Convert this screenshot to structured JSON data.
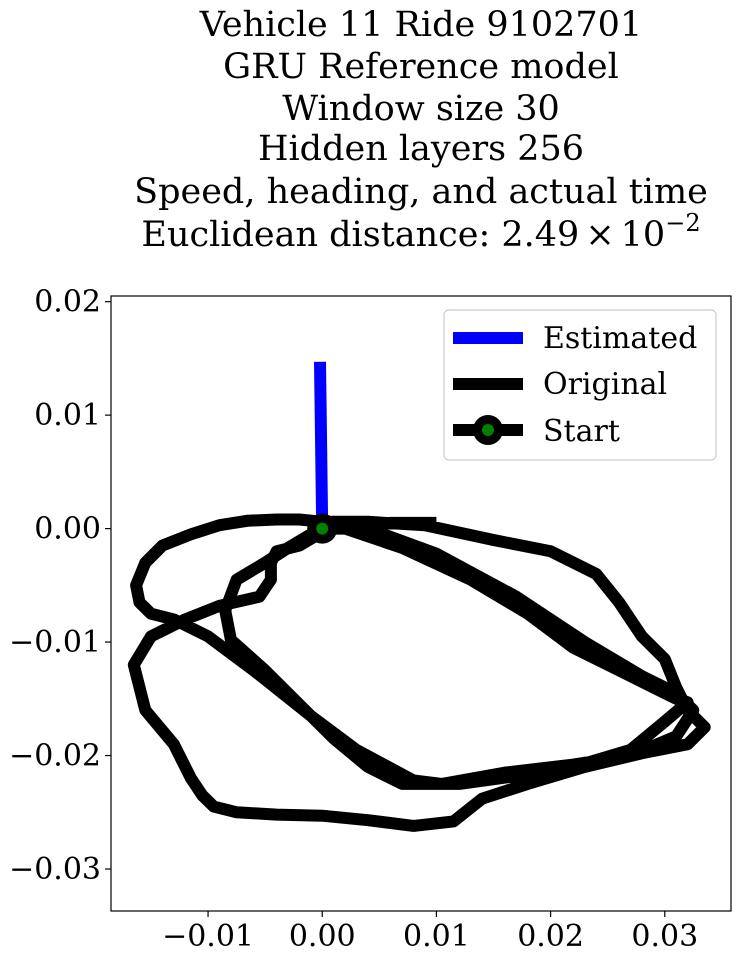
{
  "chart_data": {
    "type": "line",
    "title_lines": [
      "Vehicle 11 Ride 9102701",
      "GRU Reference model",
      "Window size 30",
      "Hidden layers 256",
      "Speed, heading, and actual time"
    ],
    "title_distance": {
      "prefix": "Euclidean distance: ",
      "mantissa": "2.49",
      "times": "×",
      "base": "10",
      "exponent": "−2"
    },
    "xlim": [
      -0.0185,
      0.0358
    ],
    "ylim": [
      -0.0337,
      0.0205
    ],
    "x_ticks": [
      {
        "value": -0.01,
        "label": "−0.01"
      },
      {
        "value": 0.0,
        "label": "0.00"
      },
      {
        "value": 0.01,
        "label": "0.01"
      },
      {
        "value": 0.02,
        "label": "0.02"
      },
      {
        "value": 0.03,
        "label": "0.03"
      }
    ],
    "y_ticks": [
      {
        "value": 0.02,
        "label": "0.02"
      },
      {
        "value": 0.01,
        "label": "0.01"
      },
      {
        "value": 0.0,
        "label": "0.00"
      },
      {
        "value": -0.01,
        "label": "−0.01"
      },
      {
        "value": -0.02,
        "label": "−0.02"
      },
      {
        "value": -0.03,
        "label": "−0.03"
      }
    ],
    "grid": false,
    "legend_position": "top-right",
    "legend": [
      "Estimated",
      "Original",
      "Start"
    ],
    "series": [
      {
        "name": "Estimated",
        "color": "#0000ff",
        "x": [
          0.0,
          -0.0001,
          -0.0002
        ],
        "y": [
          0.0,
          0.0075,
          0.0147
        ]
      },
      {
        "name": "Original",
        "color": "#000000",
        "x": [
          0.0,
          0.002,
          0.007,
          0.013,
          0.018,
          0.022,
          0.026,
          0.029,
          0.031,
          0.032,
          0.03,
          0.027,
          0.022,
          0.017,
          0.012,
          0.007,
          0.004,
          0.001,
          -0.002,
          -0.005,
          -0.008,
          -0.0085,
          -0.0075,
          -0.005,
          -0.003,
          -0.001,
          0.0,
          0.004,
          0.01,
          0.017,
          0.023,
          0.028,
          0.031,
          0.0325,
          0.031,
          0.027,
          0.022,
          0.016,
          0.0105,
          0.008,
          0.003,
          -0.001,
          -0.006,
          -0.01,
          -0.013,
          -0.015,
          -0.016,
          -0.0163,
          -0.0155,
          -0.014,
          -0.0115,
          -0.009,
          -0.0065,
          -0.004,
          -0.002,
          0.0,
          0.004,
          0.009,
          0.015,
          0.02,
          0.024,
          0.026,
          0.028,
          0.03,
          0.031,
          0.032,
          0.0335,
          0.032,
          0.028,
          0.023,
          0.018,
          0.014,
          0.0115,
          0.008,
          0.004,
          0.0,
          -0.004,
          -0.0075,
          -0.0095,
          -0.0105,
          -0.0115,
          -0.013,
          -0.0155,
          -0.0165,
          -0.015,
          -0.012,
          -0.009,
          -0.0055,
          -0.0045,
          -0.0045,
          -0.004,
          -0.002,
          0.0,
          0.001,
          0.003,
          0.006,
          0.01
        ],
        "y": [
          0.0,
          0.0,
          -0.0017,
          -0.0045,
          -0.0075,
          -0.0105,
          -0.0125,
          -0.014,
          -0.015,
          -0.0153,
          -0.017,
          -0.0195,
          -0.021,
          -0.0218,
          -0.0225,
          -0.0225,
          -0.021,
          -0.0185,
          -0.0155,
          -0.0125,
          -0.0098,
          -0.0072,
          -0.0045,
          -0.003,
          -0.0017,
          -0.0005,
          0.0,
          0.0,
          -0.0022,
          -0.006,
          -0.01,
          -0.013,
          -0.0145,
          -0.016,
          -0.0183,
          -0.02,
          -0.0208,
          -0.0215,
          -0.0225,
          -0.0222,
          -0.0195,
          -0.0165,
          -0.0125,
          -0.0095,
          -0.008,
          -0.0075,
          -0.0065,
          -0.005,
          -0.003,
          -0.0015,
          -0.0005,
          0.0003,
          0.0007,
          0.0008,
          0.0008,
          0.0006,
          0.0006,
          0.0003,
          -0.001,
          -0.002,
          -0.004,
          -0.0065,
          -0.0095,
          -0.0115,
          -0.014,
          -0.016,
          -0.0175,
          -0.019,
          -0.0198,
          -0.021,
          -0.0225,
          -0.0238,
          -0.0258,
          -0.0262,
          -0.0257,
          -0.0253,
          -0.0252,
          -0.025,
          -0.0245,
          -0.0235,
          -0.022,
          -0.019,
          -0.016,
          -0.012,
          -0.0095,
          -0.008,
          -0.0068,
          -0.006,
          -0.0045,
          -0.003,
          -0.002,
          -0.0015,
          -0.0003,
          0.0,
          0.0003,
          0.0005,
          0.0005
        ]
      },
      {
        "name": "Start",
        "color": "#008000",
        "x": [
          0.0
        ],
        "y": [
          0.0
        ]
      }
    ]
  }
}
